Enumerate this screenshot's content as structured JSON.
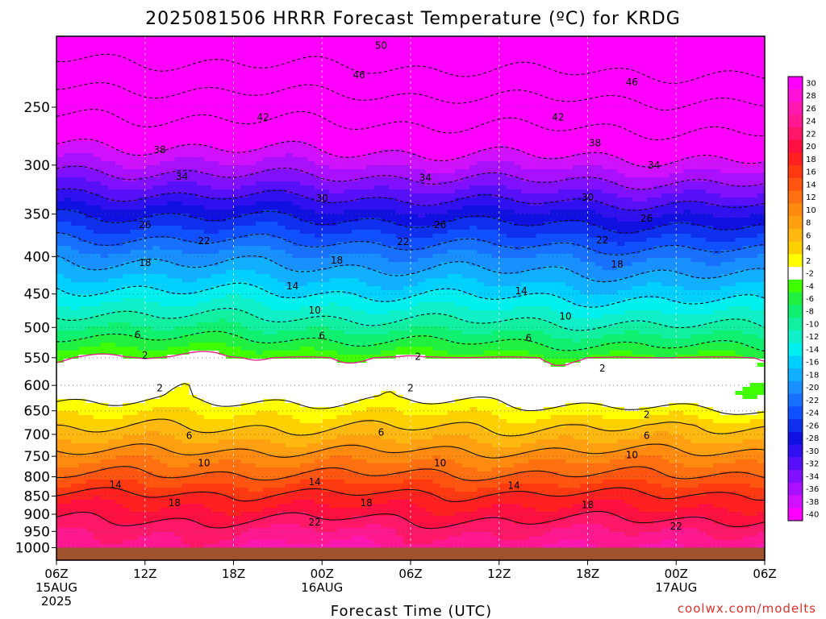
{
  "chart_data": {
    "type": "heatmap",
    "title": "2025081506 HRRR Forecast Temperature (ºC) for KRDG",
    "xlabel": "Forecast Time (UTC)",
    "ylabel": "",
    "credit": "coolwx.com/modelts",
    "x_axis": {
      "range_hours": [
        0,
        48
      ],
      "ticks": [
        {
          "hour": 0,
          "label": "06Z",
          "sub1": "15AUG",
          "sub2": "2025"
        },
        {
          "hour": 6,
          "label": "12Z",
          "sub1": "",
          "sub2": ""
        },
        {
          "hour": 12,
          "label": "18Z",
          "sub1": "",
          "sub2": ""
        },
        {
          "hour": 18,
          "label": "00Z",
          "sub1": "16AUG",
          "sub2": ""
        },
        {
          "hour": 24,
          "label": "06Z",
          "sub1": "",
          "sub2": ""
        },
        {
          "hour": 30,
          "label": "12Z",
          "sub1": "",
          "sub2": ""
        },
        {
          "hour": 36,
          "label": "18Z",
          "sub1": "",
          "sub2": ""
        },
        {
          "hour": 42,
          "label": "00Z",
          "sub1": "17AUG",
          "sub2": ""
        },
        {
          "hour": 48,
          "label": "06Z",
          "sub1": "",
          "sub2": ""
        }
      ]
    },
    "y_axis": {
      "quantity": "pressure (hPa)",
      "scale": "log",
      "inverted": true,
      "range": [
        1040,
        200
      ],
      "ticks": [
        250,
        300,
        350,
        400,
        450,
        500,
        550,
        600,
        650,
        700,
        750,
        800,
        850,
        900,
        950,
        1000
      ]
    },
    "colorbar": {
      "labels": [
        30,
        28,
        26,
        24,
        22,
        20,
        18,
        16,
        14,
        12,
        10,
        8,
        6,
        4,
        2,
        -2,
        -4,
        -6,
        -8,
        -10,
        -12,
        -14,
        -16,
        -18,
        -20,
        -22,
        -24,
        -26,
        -28,
        -30,
        -32,
        -34,
        -36,
        -38,
        -40
      ],
      "bins": [
        {
          "lo": 30,
          "hi": 32,
          "color": "#ff00ff"
        },
        {
          "lo": 28,
          "hi": 30,
          "color": "#ff10d8"
        },
        {
          "lo": 26,
          "hi": 28,
          "color": "#ff18b0"
        },
        {
          "lo": 24,
          "hi": 26,
          "color": "#ff1890"
        },
        {
          "lo": 22,
          "hi": 24,
          "color": "#ff1868"
        },
        {
          "lo": 20,
          "hi": 22,
          "color": "#ff1040"
        },
        {
          "lo": 18,
          "hi": 20,
          "color": "#ff2020"
        },
        {
          "lo": 16,
          "hi": 18,
          "color": "#ff3a10"
        },
        {
          "lo": 14,
          "hi": 16,
          "color": "#ff5510"
        },
        {
          "lo": 12,
          "hi": 14,
          "color": "#ff7010"
        },
        {
          "lo": 10,
          "hi": 12,
          "color": "#ff8a10"
        },
        {
          "lo": 8,
          "hi": 10,
          "color": "#ffa010"
        },
        {
          "lo": 6,
          "hi": 8,
          "color": "#ffb810"
        },
        {
          "lo": 4,
          "hi": 6,
          "color": "#ffd000"
        },
        {
          "lo": 2,
          "hi": 4,
          "color": "#ffff00"
        },
        {
          "lo": -2,
          "hi": 2,
          "color": "#ffffff"
        },
        {
          "lo": -4,
          "hi": -2,
          "color": "#40ff00"
        },
        {
          "lo": -6,
          "hi": -4,
          "color": "#20f040"
        },
        {
          "lo": -8,
          "hi": -6,
          "color": "#10f070"
        },
        {
          "lo": -10,
          "hi": -8,
          "color": "#10f0a0"
        },
        {
          "lo": -12,
          "hi": -10,
          "color": "#10f0c8"
        },
        {
          "lo": -14,
          "hi": -12,
          "color": "#00f0f0"
        },
        {
          "lo": -16,
          "hi": -14,
          "color": "#00d0ff"
        },
        {
          "lo": -18,
          "hi": -16,
          "color": "#10b0ff"
        },
        {
          "lo": -20,
          "hi": -18,
          "color": "#1890ff"
        },
        {
          "lo": -22,
          "hi": -20,
          "color": "#1870ff"
        },
        {
          "lo": -24,
          "hi": -22,
          "color": "#1050ff"
        },
        {
          "lo": -26,
          "hi": -24,
          "color": "#1030f0"
        },
        {
          "lo": -28,
          "hi": -26,
          "color": "#1010e0"
        },
        {
          "lo": -30,
          "hi": -28,
          "color": "#3010f0"
        },
        {
          "lo": -32,
          "hi": -30,
          "color": "#5810f8"
        },
        {
          "lo": -34,
          "hi": -32,
          "color": "#8010ff"
        },
        {
          "lo": -36,
          "hi": -34,
          "color": "#a810ff"
        },
        {
          "lo": -38,
          "hi": -36,
          "color": "#d010ff"
        },
        {
          "lo": -40,
          "hi": -38,
          "color": "#ff00ff"
        },
        {
          "lo": -99,
          "hi": -40,
          "color": "#ff00ff"
        }
      ]
    },
    "ground_color": "#a0522d",
    "contour_levels": [
      -50,
      -46,
      -42,
      -38,
      -34,
      -30,
      -26,
      -22,
      -18,
      -14,
      -10,
      -6,
      -2,
      2,
      6,
      10,
      14,
      18,
      22
    ],
    "contour_labels": [
      {
        "value": "50",
        "hour": 22,
        "p": 206
      },
      {
        "value": "46",
        "hour": 20.5,
        "p": 226
      },
      {
        "value": "46",
        "hour": 39,
        "p": 231
      },
      {
        "value": "42",
        "hour": 14,
        "p": 258
      },
      {
        "value": "42",
        "hour": 34,
        "p": 258
      },
      {
        "value": "38",
        "hour": 7,
        "p": 286
      },
      {
        "value": "38",
        "hour": 36.5,
        "p": 280
      },
      {
        "value": "34",
        "hour": 8.5,
        "p": 311
      },
      {
        "value": "34",
        "hour": 25,
        "p": 312
      },
      {
        "value": "34",
        "hour": 40.5,
        "p": 300
      },
      {
        "value": "30",
        "hour": 18,
        "p": 333
      },
      {
        "value": "30",
        "hour": 36,
        "p": 332
      },
      {
        "value": "26",
        "hour": 6,
        "p": 362
      },
      {
        "value": "26",
        "hour": 26,
        "p": 362
      },
      {
        "value": "26",
        "hour": 40,
        "p": 355
      },
      {
        "value": "22",
        "hour": 10,
        "p": 381
      },
      {
        "value": "22",
        "hour": 23.5,
        "p": 382
      },
      {
        "value": "22",
        "hour": 37,
        "p": 380
      },
      {
        "value": "18",
        "hour": 6,
        "p": 408
      },
      {
        "value": "18",
        "hour": 19,
        "p": 405
      },
      {
        "value": "18",
        "hour": 38,
        "p": 410
      },
      {
        "value": "14",
        "hour": 16,
        "p": 439
      },
      {
        "value": "14",
        "hour": 31.5,
        "p": 446
      },
      {
        "value": "10",
        "hour": 17.5,
        "p": 474
      },
      {
        "value": "10",
        "hour": 34.5,
        "p": 483
      },
      {
        "value": "6",
        "hour": 5.5,
        "p": 512
      },
      {
        "value": "6",
        "hour": 18,
        "p": 513
      },
      {
        "value": "6",
        "hour": 32,
        "p": 517
      },
      {
        "value": "2",
        "hour": 6,
        "p": 546
      },
      {
        "value": "2",
        "hour": 24.5,
        "p": 548
      },
      {
        "value": "2",
        "hour": 37,
        "p": 569
      },
      {
        "value": "2",
        "hour": 7,
        "p": 605
      },
      {
        "value": "2",
        "hour": 24,
        "p": 605
      },
      {
        "value": "2",
        "hour": 40,
        "p": 658
      },
      {
        "value": "6",
        "hour": 9,
        "p": 703
      },
      {
        "value": "6",
        "hour": 22,
        "p": 696
      },
      {
        "value": "6",
        "hour": 40,
        "p": 703
      },
      {
        "value": "10",
        "hour": 10,
        "p": 766
      },
      {
        "value": "10",
        "hour": 26,
        "p": 766
      },
      {
        "value": "10",
        "hour": 39,
        "p": 747
      },
      {
        "value": "14",
        "hour": 4,
        "p": 820
      },
      {
        "value": "14",
        "hour": 17.5,
        "p": 813
      },
      {
        "value": "14",
        "hour": 31,
        "p": 822
      },
      {
        "value": "18",
        "hour": 8,
        "p": 869
      },
      {
        "value": "18",
        "hour": 21,
        "p": 869
      },
      {
        "value": "18",
        "hour": 36,
        "p": 874
      },
      {
        "value": "22",
        "hour": 17.5,
        "p": 923
      },
      {
        "value": "22",
        "hour": 42,
        "p": 935
      }
    ]
  }
}
